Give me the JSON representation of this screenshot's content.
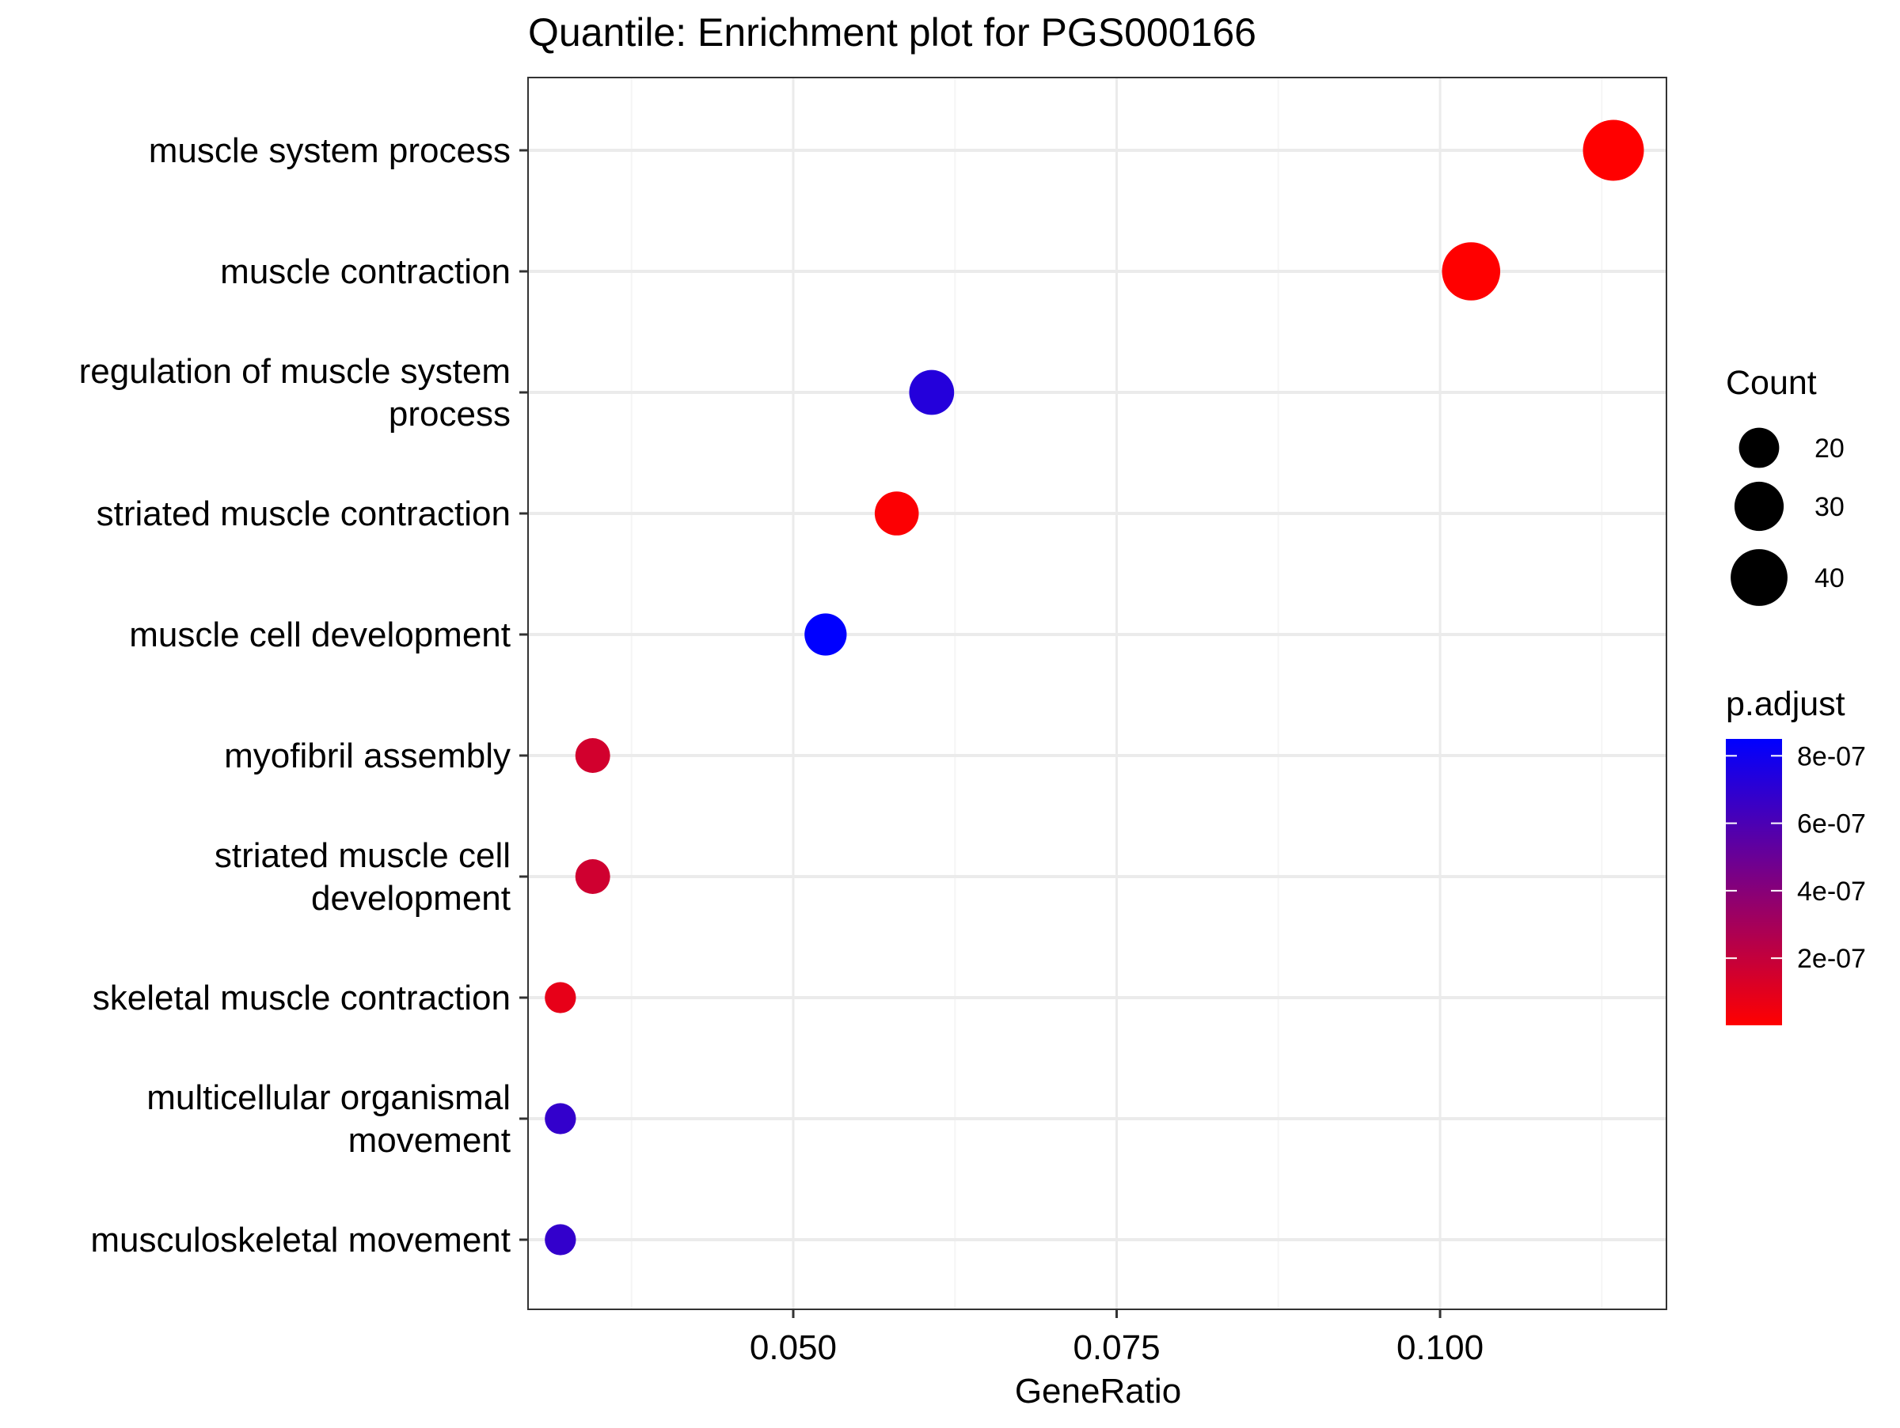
{
  "chart_data": {
    "type": "scatter",
    "title": "Quantile: Enrichment plot for PGS000166",
    "xlabel": "GeneRatio",
    "ylabel": "",
    "xlim": [
      0.0295,
      0.1175
    ],
    "x_ticks": [
      {
        "value": 0.05,
        "label": "0.050"
      },
      {
        "value": 0.075,
        "label": "0.075"
      },
      {
        "value": 0.1,
        "label": "0.100"
      }
    ],
    "x_minor_gridlines": [
      0.0375,
      0.0625,
      0.0875,
      0.1125
    ],
    "grid": true,
    "categories": [
      "muscle system process",
      "muscle contraction",
      "regulation of muscle system process",
      "striated muscle contraction",
      "muscle cell development",
      "myofibril assembly",
      "striated muscle cell development",
      "skeletal muscle contraction",
      "multicellular organismal movement",
      "musculoskeletal movement"
    ],
    "category_label_lines": [
      [
        "muscle system process"
      ],
      [
        "muscle contraction"
      ],
      [
        "regulation of muscle system",
        "process"
      ],
      [
        "striated muscle contraction"
      ],
      [
        "muscle cell development"
      ],
      [
        "myofibril assembly"
      ],
      [
        "striated muscle cell",
        "development"
      ],
      [
        "skeletal muscle contraction"
      ],
      [
        "multicellular organismal",
        "movement"
      ],
      [
        "musculoskeletal movement"
      ]
    ],
    "points": [
      {
        "category": "muscle system process",
        "x": 0.1134,
        "count": 46,
        "p_adjust": 1e-09
      },
      {
        "category": "muscle contraction",
        "x": 0.1024,
        "count": 42,
        "p_adjust": 1e-09
      },
      {
        "category": "regulation of muscle system process",
        "x": 0.0607,
        "count": 25,
        "p_adjust": 7.3e-07
      },
      {
        "category": "striated muscle contraction",
        "x": 0.058,
        "count": 24,
        "p_adjust": 1e-08
      },
      {
        "category": "muscle cell development",
        "x": 0.0525,
        "count": 22,
        "p_adjust": 8.5e-07
      },
      {
        "category": "myofibril assembly",
        "x": 0.0345,
        "count": 15,
        "p_adjust": 1.5e-07
      },
      {
        "category": "striated muscle cell development",
        "x": 0.0345,
        "count": 15,
        "p_adjust": 1.6e-07
      },
      {
        "category": "skeletal muscle contraction",
        "x": 0.032,
        "count": 12,
        "p_adjust": 8e-08
      },
      {
        "category": "multicellular organismal movement",
        "x": 0.032,
        "count": 12,
        "p_adjust": 6.8e-07
      },
      {
        "category": "musculoskeletal movement",
        "x": 0.032,
        "count": 12,
        "p_adjust": 6.8e-07
      }
    ],
    "legend": {
      "placement": "right",
      "size_title": "Count",
      "size_entries": [
        {
          "value": 20,
          "label": "20"
        },
        {
          "value": 30,
          "label": "30"
        },
        {
          "value": 40,
          "label": "40"
        }
      ],
      "color_title": "p.adjust",
      "color_range": [
        1e-09,
        8.5e-07
      ],
      "color_ticks": [
        {
          "value": 2e-07,
          "label": "2e-07"
        },
        {
          "value": 4e-07,
          "label": "4e-07"
        },
        {
          "value": 6e-07,
          "label": "6e-07"
        },
        {
          "value": 8e-07,
          "label": "8e-07"
        }
      ],
      "color_low": "#ff0000",
      "color_high": "#0000ff"
    },
    "colors": {
      "panel_border": "#333333",
      "grid_major": "#ebebeb",
      "grid_minor": "#f5f5f5",
      "tick": "#333333",
      "text": "#000000"
    }
  }
}
